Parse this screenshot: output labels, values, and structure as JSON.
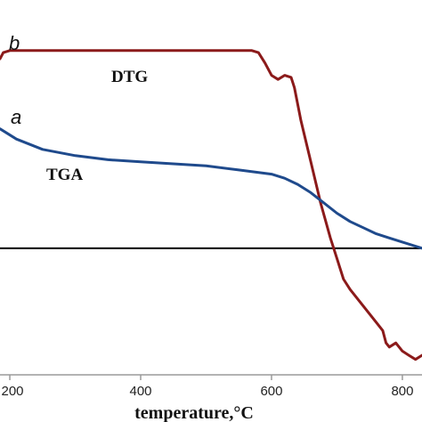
{
  "chart_data": {
    "type": "line",
    "xlabel": "temperature,°C",
    "xlim": [
      185,
      830
    ],
    "ylim": [
      -0.55,
      1.05
    ],
    "x_ticks": [
      200,
      400,
      600,
      800
    ],
    "x_tick_labels": [
      "200",
      "400",
      "600",
      "800"
    ],
    "grid": false,
    "legend": "none",
    "baseline": {
      "y": 0,
      "color": "#000000"
    },
    "series": [
      {
        "name": "DTG",
        "letter": "b",
        "color": "#8b1a1a",
        "x": [
          185,
          190,
          200,
          300,
          400,
          500,
          570,
          580,
          590,
          600,
          610,
          620,
          630,
          635,
          645,
          660,
          675,
          690,
          700,
          710,
          720,
          740,
          760,
          770,
          775,
          780,
          790,
          800,
          810,
          820,
          830
        ],
        "y": [
          0.92,
          0.95,
          0.96,
          0.96,
          0.96,
          0.96,
          0.96,
          0.95,
          0.9,
          0.84,
          0.82,
          0.84,
          0.83,
          0.78,
          0.62,
          0.42,
          0.22,
          0.05,
          -0.05,
          -0.15,
          -0.2,
          -0.28,
          -0.36,
          -0.4,
          -0.46,
          -0.48,
          -0.46,
          -0.5,
          -0.52,
          -0.54,
          -0.52
        ]
      },
      {
        "name": "TGA",
        "letter": "a",
        "color": "#1f4a8c",
        "x": [
          185,
          210,
          250,
          300,
          350,
          400,
          450,
          500,
          550,
          600,
          620,
          640,
          660,
          680,
          700,
          720,
          740,
          760,
          780,
          800,
          820,
          830
        ],
        "y": [
          0.58,
          0.53,
          0.48,
          0.45,
          0.43,
          0.42,
          0.41,
          0.4,
          0.38,
          0.36,
          0.34,
          0.31,
          0.27,
          0.22,
          0.17,
          0.13,
          0.1,
          0.07,
          0.05,
          0.03,
          0.01,
          0.0
        ]
      }
    ]
  }
}
